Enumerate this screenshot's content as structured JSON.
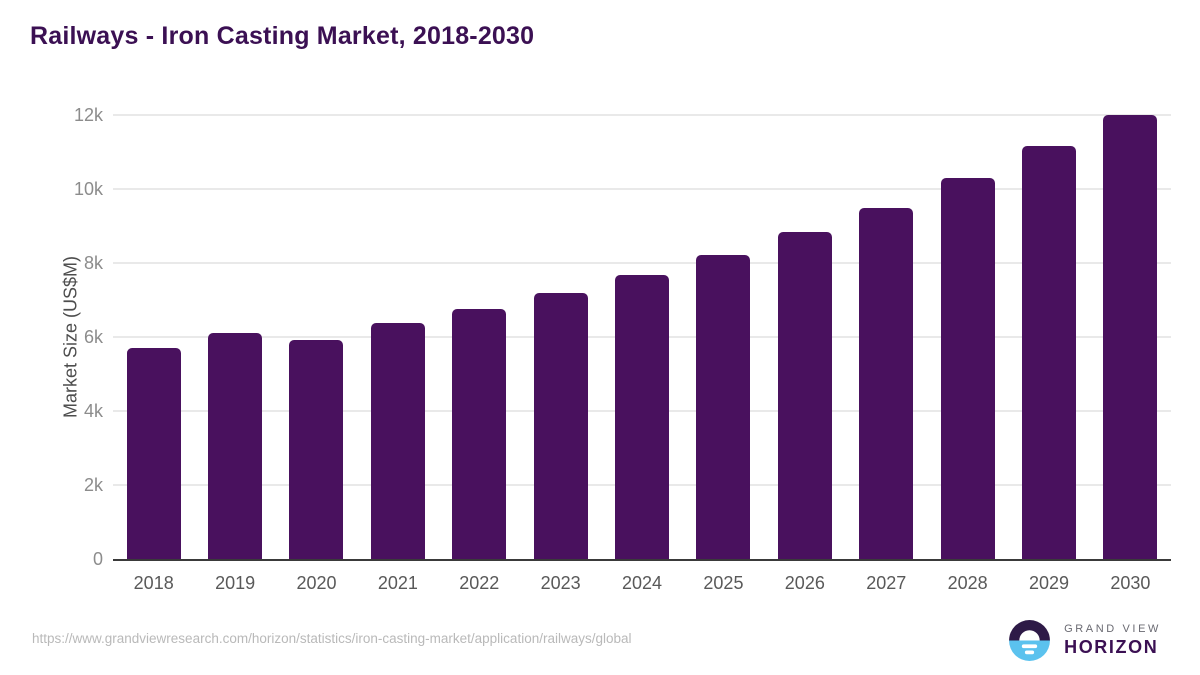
{
  "header": {
    "title": "Railways - Iron Casting Market, 2018-2030"
  },
  "chart_data": {
    "type": "bar",
    "title": "Railways - Iron Casting Market, 2018-2030",
    "categories": [
      "2018",
      "2019",
      "2020",
      "2021",
      "2022",
      "2023",
      "2024",
      "2025",
      "2026",
      "2027",
      "2028",
      "2029",
      "2030"
    ],
    "values": [
      5700,
      6110,
      5930,
      6370,
      6760,
      7190,
      7680,
      8220,
      8840,
      9500,
      10300,
      11150,
      12080
    ],
    "xlabel": "",
    "ylabel": "Market Size (US$M)",
    "ylim": [
      0,
      12000
    ],
    "yticks": [
      {
        "value": 0,
        "label": "0"
      },
      {
        "value": 2000,
        "label": "2k"
      },
      {
        "value": 4000,
        "label": "4k"
      },
      {
        "value": 6000,
        "label": "6k"
      },
      {
        "value": 8000,
        "label": "8k"
      },
      {
        "value": 10000,
        "label": "10k"
      },
      {
        "value": 12000,
        "label": "12k"
      }
    ],
    "grid": "horizontal-light",
    "legend_position": "none",
    "bar_color": "#49115e"
  },
  "footer": {
    "source_url": "https://www.grandviewresearch.com/horizon/statistics/iron-casting-market/application/railways/global",
    "logo": {
      "brand_top": "GRAND VIEW",
      "brand_bottom": "HORIZON",
      "icon": "horizon-sun-circle-icon"
    }
  },
  "colors": {
    "title": "#3b1053",
    "bar": "#49115e",
    "axis_line": "#3a3a3a",
    "gridline": "#e9e9e9",
    "y_tick_label": "#8c8c8c",
    "x_tick_label": "#595959",
    "url_text": "#b9b9b9",
    "logo_dark": "#2e1a47",
    "logo_blue": "#5bc2ee"
  }
}
